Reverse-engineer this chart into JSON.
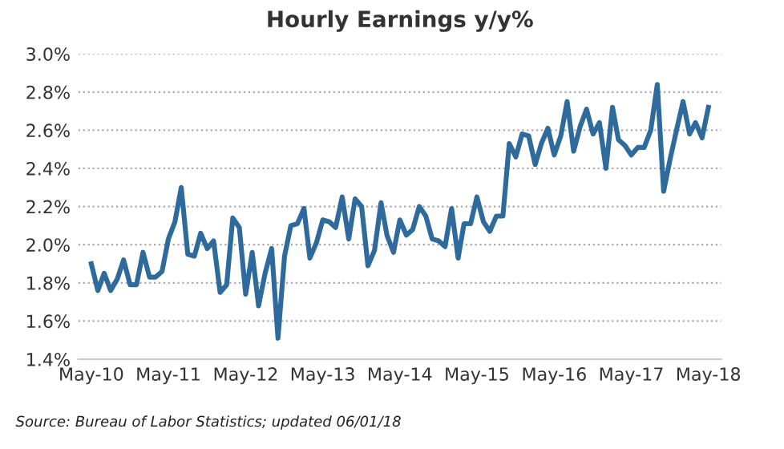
{
  "chart_data": {
    "type": "line",
    "title": "Hourly Earnings y/y%",
    "x": [
      "2010-05",
      "2010-06",
      "2010-07",
      "2010-08",
      "2010-09",
      "2010-10",
      "2010-11",
      "2010-12",
      "2011-01",
      "2011-02",
      "2011-03",
      "2011-04",
      "2011-05",
      "2011-06",
      "2011-07",
      "2011-08",
      "2011-09",
      "2011-10",
      "2011-11",
      "2011-12",
      "2012-01",
      "2012-02",
      "2012-03",
      "2012-04",
      "2012-05",
      "2012-06",
      "2012-07",
      "2012-08",
      "2012-09",
      "2012-10",
      "2012-11",
      "2012-12",
      "2013-01",
      "2013-02",
      "2013-03",
      "2013-04",
      "2013-05",
      "2013-06",
      "2013-07",
      "2013-08",
      "2013-09",
      "2013-10",
      "2013-11",
      "2013-12",
      "2014-01",
      "2014-02",
      "2014-03",
      "2014-04",
      "2014-05",
      "2014-06",
      "2014-07",
      "2014-08",
      "2014-09",
      "2014-10",
      "2014-11",
      "2014-12",
      "2015-01",
      "2015-02",
      "2015-03",
      "2015-04",
      "2015-05",
      "2015-06",
      "2015-07",
      "2015-08",
      "2015-09",
      "2015-10",
      "2015-11",
      "2015-12",
      "2016-01",
      "2016-02",
      "2016-03",
      "2016-04",
      "2016-05",
      "2016-06",
      "2016-07",
      "2016-08",
      "2016-09",
      "2016-10",
      "2016-11",
      "2016-12",
      "2017-01",
      "2017-02",
      "2017-03",
      "2017-04",
      "2017-05",
      "2017-06",
      "2017-07",
      "2017-08",
      "2017-09",
      "2017-10",
      "2017-11",
      "2017-12",
      "2018-01",
      "2018-02",
      "2018-03",
      "2018-04",
      "2018-05"
    ],
    "series": [
      {
        "color": "#2e6a9c",
        "values": [
          1.9,
          1.76,
          1.85,
          1.76,
          1.82,
          1.92,
          1.79,
          1.79,
          1.96,
          1.83,
          1.83,
          1.86,
          2.03,
          2.12,
          2.3,
          1.95,
          1.94,
          2.06,
          1.98,
          2.02,
          1.75,
          1.79,
          2.14,
          2.09,
          1.74,
          1.96,
          1.68,
          1.85,
          1.98,
          1.51,
          1.94,
          2.1,
          2.11,
          2.19,
          1.93,
          2.01,
          2.13,
          2.12,
          2.09,
          2.25,
          2.03,
          2.24,
          2.2,
          1.89,
          1.97,
          2.22,
          2.05,
          1.96,
          2.13,
          2.05,
          2.08,
          2.2,
          2.15,
          2.03,
          2.02,
          1.99,
          2.19,
          1.93,
          2.11,
          2.11,
          2.25,
          2.12,
          2.07,
          2.15,
          2.15,
          2.53,
          2.46,
          2.58,
          2.57,
          2.42,
          2.53,
          2.61,
          2.47,
          2.57,
          2.75,
          2.49,
          2.62,
          2.71,
          2.58,
          2.64,
          2.4,
          2.72,
          2.55,
          2.52,
          2.47,
          2.51,
          2.51,
          2.6,
          2.84,
          2.28,
          2.45,
          2.6,
          2.75,
          2.58,
          2.64,
          2.56,
          2.72
        ]
      }
    ],
    "xlim": [
      "2010-03",
      "2018-07"
    ],
    "xticks": [
      {
        "value": "2010-05",
        "label": "May-10"
      },
      {
        "value": "2011-05",
        "label": "May-11"
      },
      {
        "value": "2012-05",
        "label": "May-12"
      },
      {
        "value": "2013-05",
        "label": "May-13"
      },
      {
        "value": "2014-05",
        "label": "May-14"
      },
      {
        "value": "2015-05",
        "label": "May-15"
      },
      {
        "value": "2016-05",
        "label": "May-16"
      },
      {
        "value": "2017-05",
        "label": "May-17"
      },
      {
        "value": "2018-05",
        "label": "May-18"
      }
    ],
    "ylim": [
      1.4,
      3.0
    ],
    "yticks": [
      {
        "value": 1.4,
        "label": "1.4%"
      },
      {
        "value": 1.6,
        "label": "1.6%"
      },
      {
        "value": 1.8,
        "label": "1.8%"
      },
      {
        "value": 2.0,
        "label": "2.0%"
      },
      {
        "value": 2.2,
        "label": "2.2%"
      },
      {
        "value": 2.4,
        "label": "2.4%"
      },
      {
        "value": 2.6,
        "label": "2.6%"
      },
      {
        "value": 2.8,
        "label": "2.8%"
      },
      {
        "value": 3.0,
        "label": "3.0%"
      }
    ],
    "grid": "y",
    "marker": "none",
    "line_style": "solid",
    "annotations": [
      "Source: Bureau of Labor Statistics; updated 06/01/18"
    ]
  }
}
